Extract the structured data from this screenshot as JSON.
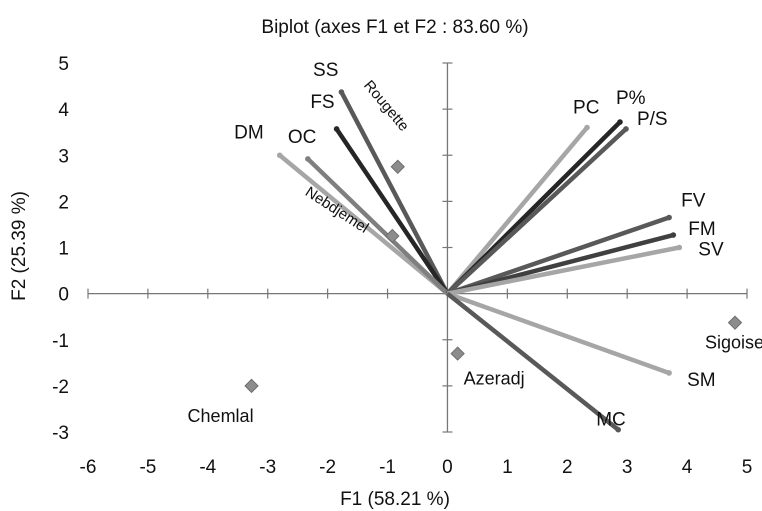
{
  "chart_data": {
    "type": "scatter",
    "subtype": "biplot",
    "title": "Biplot (axes F1 et F2 : 83.60 %)",
    "xlabel": "F1 (58.21 %)",
    "ylabel": "F2 (25.39 %)",
    "xlim": [
      -6,
      5
    ],
    "ylim": [
      -3,
      5
    ],
    "xticks": [
      -6,
      -5,
      -4,
      -3,
      -2,
      -1,
      0,
      1,
      2,
      3,
      4,
      5
    ],
    "yticks": [
      -3,
      -2,
      -1,
      0,
      1,
      2,
      3,
      4,
      5
    ],
    "grid": false,
    "variables": [
      {
        "name": "SS",
        "x": -1.77,
        "y": 4.37,
        "color": "#595959"
      },
      {
        "name": "FS",
        "x": -1.85,
        "y": 3.57,
        "color": "#262626"
      },
      {
        "name": "DM",
        "x": -2.8,
        "y": 3.0,
        "color": "#a6a6a6"
      },
      {
        "name": "OC",
        "x": -2.33,
        "y": 2.92,
        "color": "#7f7f7f"
      },
      {
        "name": "PC",
        "x": 2.33,
        "y": 3.6,
        "color": "#a6a6a6"
      },
      {
        "name": "P%",
        "x": 2.88,
        "y": 3.72,
        "color": "#262626"
      },
      {
        "name": "P/S",
        "x": 2.98,
        "y": 3.57,
        "color": "#595959"
      },
      {
        "name": "FV",
        "x": 3.7,
        "y": 1.65,
        "color": "#595959"
      },
      {
        "name": "FM",
        "x": 3.77,
        "y": 1.27,
        "color": "#404040"
      },
      {
        "name": "SV",
        "x": 3.87,
        "y": 1.0,
        "color": "#a6a6a6"
      },
      {
        "name": "SM",
        "x": 3.7,
        "y": -1.72,
        "color": "#a6a6a6"
      },
      {
        "name": "MC",
        "x": 2.85,
        "y": -2.95,
        "color": "#595959"
      }
    ],
    "observations": [
      {
        "name": "Rougette",
        "x": -0.83,
        "y": 2.75
      },
      {
        "name": "Nebdjemel",
        "x": -0.92,
        "y": 1.25
      },
      {
        "name": "Sigoise",
        "x": 4.8,
        "y": -0.63
      },
      {
        "name": "Azeradj",
        "x": 0.17,
        "y": -1.3
      },
      {
        "name": "Chemlal",
        "x": -3.27,
        "y": -2.0
      }
    ],
    "colors": {
      "axis": "#777777",
      "marker": "#8c8c8c",
      "marker_stroke": "#6e6e6e"
    }
  }
}
